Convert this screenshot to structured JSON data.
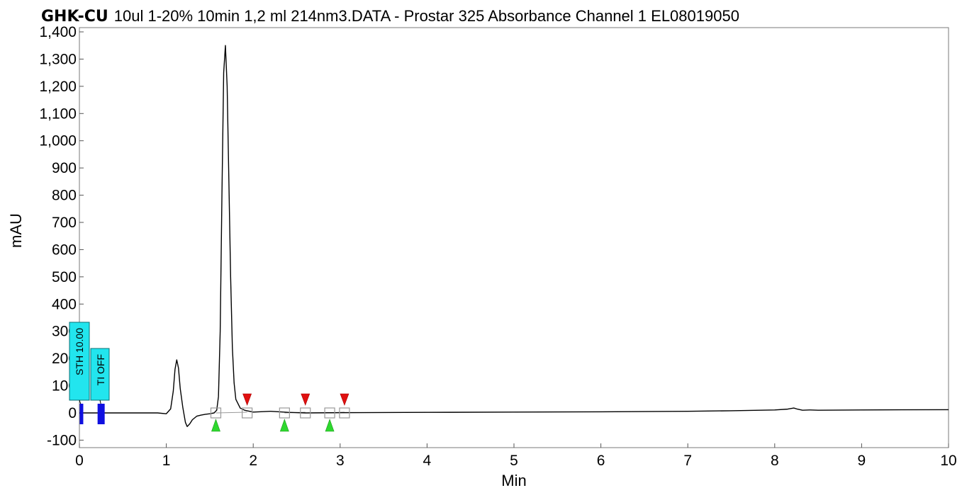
{
  "title_prefix": "GHK-CU",
  "title": "10ul 1-20% 10min 1,2 ml 214nm3.DATA - Prostar 325 Absorbance Channel 1 EL08019050",
  "chart_data": {
    "type": "line",
    "xlabel": "Min",
    "ylabel": "mAU",
    "xlim": [
      0,
      10
    ],
    "ylim": [
      -120,
      1420
    ],
    "x_ticks": [
      "0",
      "1",
      "2",
      "3",
      "4",
      "5",
      "6",
      "7",
      "8",
      "9",
      "10"
    ],
    "y_ticks": [
      "-100",
      "0",
      "100",
      "200",
      "300",
      "400",
      "500",
      "600",
      "700",
      "800",
      "900",
      "1,000",
      "1,100",
      "1,200",
      "1,300",
      "1,400"
    ],
    "grid": false,
    "series": [
      {
        "x": [
          0,
          0.9,
          1.0,
          1.05,
          1.08,
          1.1,
          1.12,
          1.14,
          1.16,
          1.19,
          1.22,
          1.24,
          1.27,
          1.3,
          1.35,
          1.4,
          1.45,
          1.5,
          1.55,
          1.58,
          1.6,
          1.62,
          1.64,
          1.66,
          1.68,
          1.7,
          1.72,
          1.74,
          1.76,
          1.78,
          1.8,
          1.85,
          1.9,
          2.0,
          2.2,
          2.4,
          2.6,
          3.0,
          4.0,
          5.0,
          6.0,
          7.0,
          7.5,
          8.0,
          8.15,
          8.22,
          8.26,
          8.32,
          8.4,
          8.5,
          9.0,
          10.0
        ],
        "y": [
          0,
          0,
          -3,
          15,
          80,
          160,
          195,
          165,
          90,
          20,
          -35,
          -50,
          -40,
          -25,
          -12,
          -8,
          -5,
          -3,
          0,
          10,
          60,
          300,
          800,
          1250,
          1350,
          1200,
          850,
          500,
          240,
          110,
          50,
          18,
          10,
          3,
          6,
          2,
          0,
          1,
          2,
          3,
          4,
          6,
          8,
          11,
          14,
          18,
          14,
          10,
          11,
          10,
          11,
          12
        ]
      }
    ],
    "events": [
      {
        "label": "STH 10.00",
        "x": 0.02
      },
      {
        "label": "TI OFF",
        "x": 0.25
      }
    ],
    "peak_start_markers": [
      1.57,
      2.36,
      2.88
    ],
    "peak_end_markers": [
      1.93,
      2.6,
      3.05
    ],
    "colors": {
      "trace": "#000000",
      "start_marker": "#2ed82e",
      "end_marker": "#e01010",
      "event_label_bg": "#22e5ee",
      "event_bar": "#1010e0"
    }
  }
}
